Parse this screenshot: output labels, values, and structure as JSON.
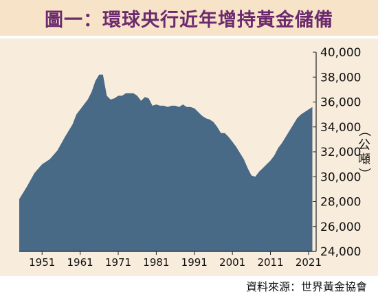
{
  "title": "圖一：環球央行近年增持黃金儲備",
  "source": "資料來源：世界黃金協會",
  "colors": {
    "area": "#486a86",
    "background": "#f8ecdc",
    "title_bar": "#f7e3c7",
    "title_text": "#6b2a6e"
  },
  "chart_data": {
    "type": "area",
    "title": "圖一：環球央行近年增持黃金儲備",
    "ylabel": "（公噸）",
    "xlabel": "",
    "xlim": [
      1945,
      2023
    ],
    "ylim": [
      24000,
      40000
    ],
    "grid": false,
    "y_ticks": [
      24000,
      26000,
      28000,
      30000,
      32000,
      34000,
      36000,
      38000,
      40000
    ],
    "y_tick_labels": [
      "24,000",
      "26,000",
      "28,000",
      "30,000",
      "32,000",
      "34,000",
      "36,000",
      "38,000",
      "40,000"
    ],
    "x_ticks": [
      1951,
      1961,
      1971,
      1981,
      1991,
      2001,
      2011,
      2021
    ],
    "x_tick_labels": [
      "1951",
      "1961",
      "1971",
      "1981",
      "1991",
      "2001",
      "2011",
      "2021"
    ],
    "x": [
      1945,
      1947,
      1949,
      1951,
      1953,
      1955,
      1957,
      1959,
      1960,
      1962,
      1963,
      1964,
      1965,
      1966,
      1967,
      1968,
      1969,
      1970,
      1971,
      1972,
      1973,
      1974,
      1975,
      1976,
      1977,
      1978,
      1979,
      1980,
      1981,
      1982,
      1983,
      1984,
      1985,
      1986,
      1987,
      1988,
      1989,
      1990,
      1991,
      1992,
      1993,
      1994,
      1995,
      1996,
      1997,
      1998,
      1999,
      2000,
      2001,
      2002,
      2003,
      2004,
      2005,
      2006,
      2007,
      2008,
      2009,
      2010,
      2011,
      2012,
      2013,
      2014,
      2015,
      2016,
      2017,
      2018,
      2019,
      2020,
      2021,
      2022
    ],
    "y": [
      28200,
      29200,
      30300,
      31000,
      31400,
      32100,
      33200,
      34200,
      35000,
      35800,
      36200,
      36800,
      37700,
      38200,
      38200,
      36500,
      36200,
      36300,
      36500,
      36500,
      36700,
      36700,
      36700,
      36500,
      36100,
      36400,
      36300,
      35700,
      35800,
      35700,
      35700,
      35600,
      35700,
      35700,
      35600,
      35800,
      35600,
      35600,
      35500,
      35200,
      34900,
      34700,
      34600,
      34400,
      34000,
      33500,
      33500,
      33200,
      32800,
      32400,
      31900,
      31400,
      30700,
      30100,
      30000,
      30400,
      30700,
      31000,
      31300,
      31700,
      32300,
      32700,
      33200,
      33700,
      34200,
      34700,
      35000,
      35200,
      35400,
      35600
    ],
    "series": [
      {
        "values_ref": "y"
      }
    ]
  }
}
